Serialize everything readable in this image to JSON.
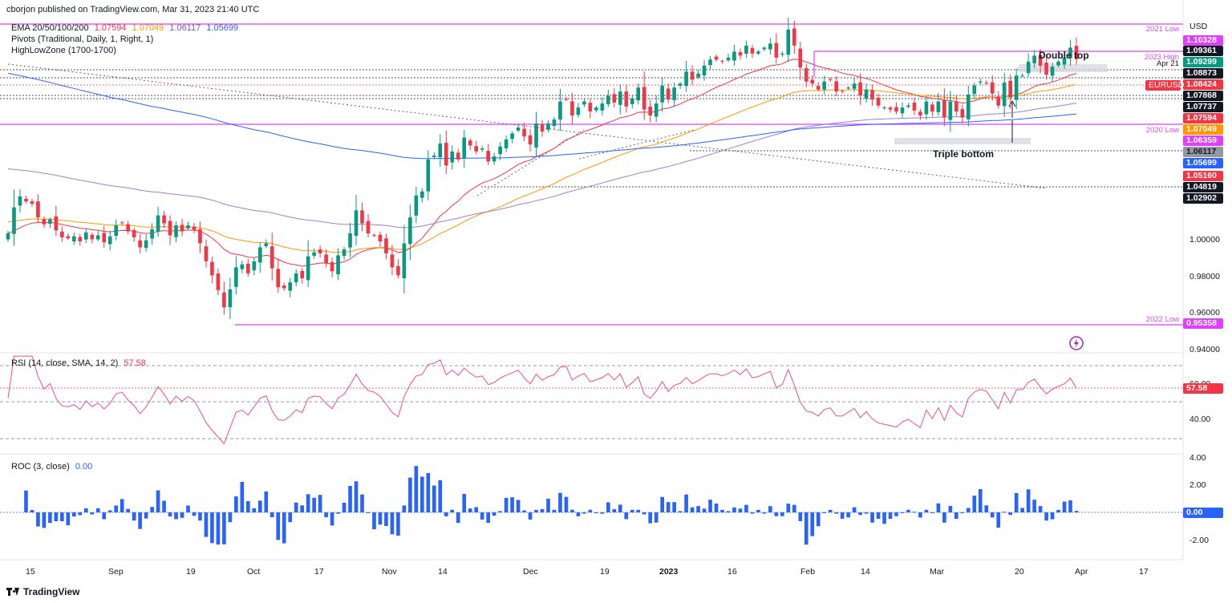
{
  "header": {
    "published": "cborjon published on TradingView.com, Mar 31, 2023 21:40 UTC",
    "ema_label": "EMA 20/50/100/200",
    "ema_values": [
      "1.07594",
      "1.07049",
      "1.06117",
      "1.05699"
    ],
    "pivots_label": "Pivots (Traditional, Daily, 1, Right, 1)",
    "hlz_label": "HighLowZone (1700-1700)"
  },
  "price_axis": {
    "currency": "USD",
    "ticks": [
      "1.00000",
      "0.98000",
      "0.96000",
      "0.94000"
    ],
    "tags": [
      {
        "value": "1.10328",
        "color": "#e040fb",
        "text_color": "#ffffff"
      },
      {
        "value": "1.09361",
        "color": "#131722",
        "text_color": "#ffffff"
      },
      {
        "value": "1.09299",
        "color": "#089981",
        "text_color": "#ffffff"
      },
      {
        "value": "1.08873",
        "color": "#131722",
        "text_color": "#ffffff"
      },
      {
        "value": "1.08424",
        "color": "#f23645",
        "text_color": "#ffffff"
      },
      {
        "value": "1.07868",
        "color": "#131722",
        "text_color": "#ffffff"
      },
      {
        "value": "1.07737",
        "color": "#131722",
        "text_color": "#ffffff"
      },
      {
        "value": "1.07594",
        "color": "#f23645",
        "text_color": "#ffffff"
      },
      {
        "value": "1.07049",
        "color": "#ff9800",
        "text_color": "#ffffff"
      },
      {
        "value": "1.06359",
        "color": "#e040fb",
        "text_color": "#ffffff"
      },
      {
        "value": "1.06117",
        "color": "#9598a1",
        "text_color": "#131722"
      },
      {
        "value": "1.05699",
        "color": "#2962ff",
        "text_color": "#ffffff"
      },
      {
        "value": "1.05160",
        "color": "#f23645",
        "text_color": "#ffffff"
      },
      {
        "value": "1.04819",
        "color": "#131722",
        "text_color": "#ffffff"
      },
      {
        "value": "1.02902",
        "color": "#131722",
        "text_color": "#ffffff"
      },
      {
        "value": "0.95358",
        "color": "#e040fb",
        "text_color": "#ffffff"
      }
    ],
    "symbol_tag": "EURUSD"
  },
  "zones": {
    "low_2021": "2021 Low",
    "high_2023": "2023 High",
    "apr21": "Apr 21",
    "low_2020": "2020 Low",
    "low_2022": "2022 Low"
  },
  "annotations": {
    "double_top": "Double top",
    "triple_bottom": "Triple bottom"
  },
  "rsi": {
    "label": "RSI (14, close, SMA, 14, 2)",
    "value": "57.58",
    "ticks": [
      "60.00",
      "40.00"
    ],
    "value_color": "#f23645"
  },
  "roc": {
    "label": "ROC (3, close)",
    "value": "0.00",
    "ticks": [
      "4.00",
      "2.00",
      "0.00",
      "-2.00"
    ]
  },
  "x_axis": [
    "15",
    "Sep",
    "19",
    "Oct",
    "17",
    "Nov",
    "14",
    "Dec",
    "19",
    "2023",
    "16",
    "Feb",
    "14",
    "Mar",
    "20",
    "Apr",
    "17"
  ],
  "footer": {
    "brand": "TradingView"
  },
  "colors": {
    "up": "#089981",
    "down": "#f23645",
    "ema20": "#f23645",
    "ema50": "#ff9800",
    "ema100": "#9c7fd6",
    "ema200": "#2962ff",
    "zone": "#e040fb",
    "rsi": "#f0507a",
    "roc": "#2962ff"
  },
  "chart_data": {
    "type": "candlestick",
    "symbol": "EURUSD",
    "timeframe": "Daily",
    "period": "Aug 2022 – Mar 2023",
    "ylim": [
      0.938,
      1.105
    ],
    "closes": [
      0.997,
      1.01,
      1.0155,
      1.013,
      1.0118,
      1.005,
      1.0015,
      1.004,
      0.9985,
      0.995,
      0.9945,
      0.9955,
      0.993,
      0.9975,
      0.994,
      0.996,
      0.9925,
      0.9955,
      1.001,
      1.0022,
      0.998,
      0.995,
      0.99,
      0.9935,
      0.999,
      1.006,
      1.002,
      0.996,
      1.001,
      0.998,
      1.001,
      0.9985,
      0.992,
      0.983,
      0.976,
      0.9686,
      0.96,
      0.969,
      0.98,
      0.9815,
      0.977,
      0.983,
      0.99,
      0.992,
      0.9795,
      0.97,
      0.9695,
      0.9725,
      0.977,
      0.9745,
      0.9855,
      0.9875,
      0.987,
      0.982,
      0.978,
      0.986,
      0.989,
      0.997,
      1.0085,
      1.002,
      0.997,
      0.996,
      0.993,
      0.987,
      0.98,
      0.976,
      0.992,
      1.005,
      1.016,
      1.018,
      1.034,
      1.036,
      1.042,
      1.031,
      1.038,
      1.034,
      1.045,
      1.041,
      1.038,
      1.0395,
      1.033,
      1.0355,
      1.0405,
      1.044,
      1.047,
      1.05,
      1.0455,
      1.0415,
      1.052,
      1.048,
      1.052,
      1.054,
      1.063,
      1.064,
      1.056,
      1.06,
      1.063,
      1.058,
      1.06,
      1.062,
      1.0658,
      1.0625,
      1.068,
      1.0605,
      1.0645,
      1.07,
      1.059,
      1.056,
      1.062,
      1.071,
      1.064,
      1.07,
      1.072,
      1.078,
      1.074,
      1.077,
      1.081,
      1.084,
      1.084,
      1.083,
      1.085,
      1.088,
      1.086,
      1.091,
      1.087,
      1.088,
      1.09,
      1.092,
      1.085,
      1.087,
      1.099,
      1.091,
      1.08,
      1.073,
      1.072,
      1.069,
      1.073,
      1.074,
      1.068,
      1.068,
      1.07,
      1.072,
      1.066,
      1.069,
      1.064,
      1.061,
      1.06,
      1.059,
      1.058,
      1.06,
      1.061,
      1.0585,
      1.056,
      1.063,
      1.058,
      1.063,
      1.055,
      1.063,
      1.058,
      1.055,
      1.0665,
      1.071,
      1.073,
      1.072,
      1.067,
      1.061,
      1.0725,
      1.065,
      1.076,
      1.076,
      1.083,
      1.086,
      1.081,
      1.0765,
      1.0805,
      1.083,
      1.085,
      1.09,
      1.0842
    ]
  }
}
